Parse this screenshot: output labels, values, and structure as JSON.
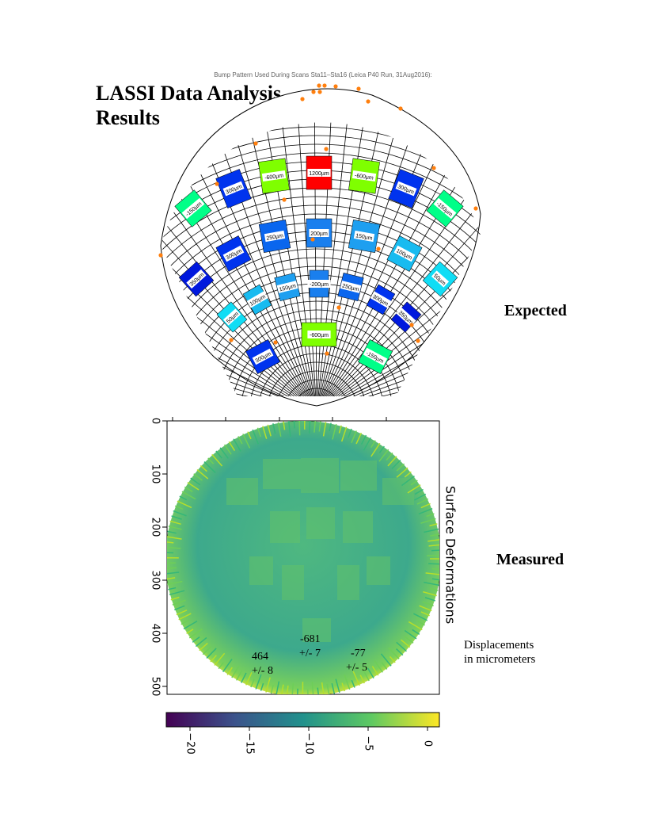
{
  "page": {
    "title_line1": "LASSI Data Analysis",
    "title_line2": "Results",
    "expected_label": "Expected",
    "measured_label": "Measured",
    "note_line1": "Displacements",
    "note_line2": "in micrometers"
  },
  "expected_figure": {
    "title": "Bump Pattern Used During Scans Sta11–Sta16 (Leica P40 Run, 31Aug2016):",
    "panels": [
      {
        "label": "1200µm",
        "color": "#ff0000"
      },
      {
        "label": "-600µm",
        "color": "#7fff00"
      },
      {
        "label": "-600µm",
        "color": "#7fff00"
      },
      {
        "label": "300µm",
        "color": "#0033ee"
      },
      {
        "label": "300µm",
        "color": "#0033ee"
      },
      {
        "label": "-150µm",
        "color": "#00ff88"
      },
      {
        "label": "-150µm",
        "color": "#00ff88"
      },
      {
        "label": "250µm",
        "color": "#0a66ee"
      },
      {
        "label": "200µm",
        "color": "#1a7fee"
      },
      {
        "label": "150µm",
        "color": "#1e9ff0"
      },
      {
        "label": "300µm",
        "color": "#0033ee"
      },
      {
        "label": "100µm",
        "color": "#18bbf0"
      },
      {
        "label": "350µm",
        "color": "#0018dd"
      },
      {
        "label": "50µm",
        "color": "#10ddf5"
      },
      {
        "label": "150µm",
        "color": "#1e9ff0"
      },
      {
        "label": "-200µm",
        "color": "#1a7fee"
      },
      {
        "label": "250µm",
        "color": "#0a66ee"
      },
      {
        "label": "100µm",
        "color": "#18bbf0"
      },
      {
        "label": "300µm",
        "color": "#0033ee"
      },
      {
        "label": "50µm",
        "color": "#10ddf5"
      },
      {
        "label": "350µm",
        "color": "#0018dd"
      },
      {
        "label": "-600µm",
        "color": "#7fff00"
      },
      {
        "label": "300µm",
        "color": "#0033ee"
      },
      {
        "label": "-150µm",
        "color": "#00ff88"
      }
    ],
    "marker_color": "#ff7f0e"
  },
  "measured_figure": {
    "axis_title": "Surface Deformations",
    "y_ticks": [
      "0",
      "100",
      "200",
      "300",
      "400",
      "500"
    ],
    "colorbar_ticks": [
      "−20",
      "−15",
      "−10",
      "−5",
      "0"
    ],
    "colorbar_range": [
      -22,
      1
    ],
    "colormap": [
      "#440154",
      "#3b528b",
      "#21918c",
      "#5ec962",
      "#fde725"
    ],
    "stats": [
      {
        "value": "464",
        "err": "+/- 8"
      },
      {
        "value": "-681",
        "err": "+/- 7"
      },
      {
        "value": "-77",
        "err": "+/- 5"
      }
    ]
  }
}
